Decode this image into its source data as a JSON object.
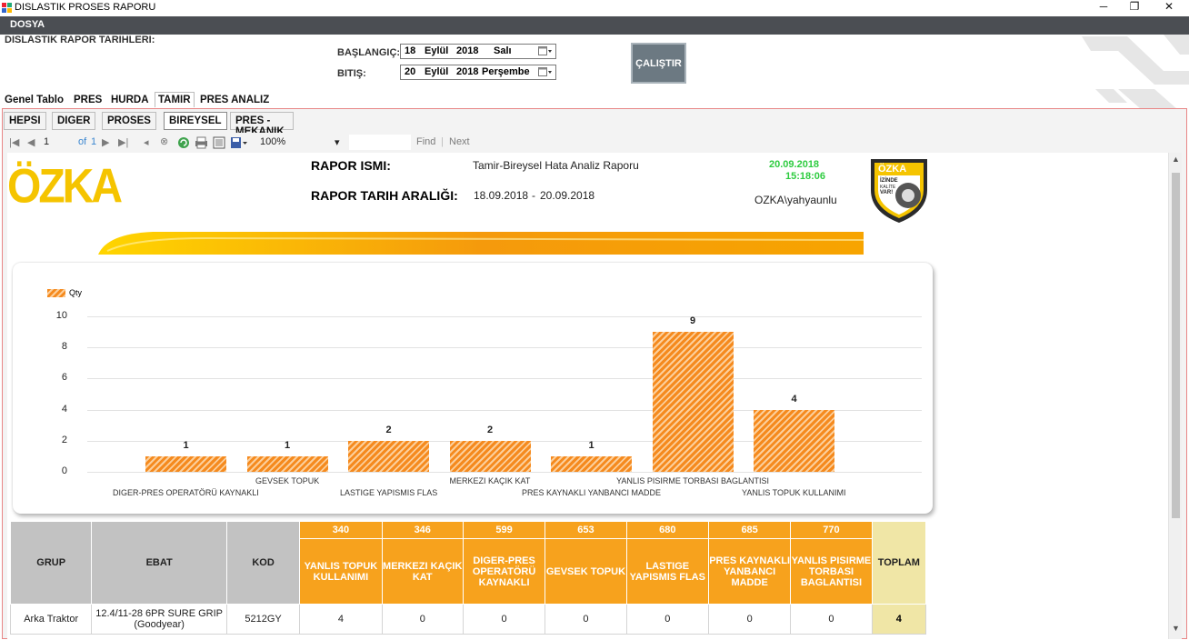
{
  "window": {
    "title": "DISLASTIK PROSES RAPORU",
    "minimize": "─",
    "restore": "❐",
    "close": "✕"
  },
  "menu": {
    "file": "DOSYA"
  },
  "header": {
    "dates_label": "DISLASTIK RAPOR TARIHLERI:",
    "start_label": "BAŞLANGIÇ:",
    "end_label": "BITIŞ:",
    "start": {
      "day": "18",
      "month": "Eylül",
      "year": "2018",
      "weekday": "Salı"
    },
    "end": {
      "day": "20",
      "month": "Eylül",
      "year": "2018",
      "weekday": "Perşembe"
    },
    "run_button": "ÇALIŞTIR"
  },
  "tabs_outer": [
    "Genel Tablo",
    "PRES",
    "HURDA",
    "TAMIR",
    "PRES ANALIZ"
  ],
  "tabs_inner": [
    "HEPSI",
    "DIGER",
    "PROSES",
    "BIREYSEL",
    "PRES - MEKANIK ELEKTRIK"
  ],
  "toolbar": {
    "page": "1",
    "of": "of",
    "total": "1",
    "zoom": "100%",
    "find": "Find",
    "next": "Next"
  },
  "report": {
    "logo": "ÖZKA",
    "name_label": "RAPOR ISMI:",
    "name_value": "Tamir-Bireysel Hata Analiz Raporu",
    "range_label": "RAPOR TARIH ARALIĞI:",
    "range_start": "18.09.2018",
    "range_sep": "-",
    "range_end": "20.09.2018",
    "date": "20.09.2018",
    "time": "15:18:06",
    "user": "OZKA\\yahyaunlu",
    "badge_lines": [
      "ÖZKA",
      "İZİNDE",
      "KALİTE",
      "VAR!"
    ]
  },
  "chart_data": {
    "type": "bar",
    "legend": "Qty",
    "categories": [
      "DIGER-PRES OPERATÖRÜ KAYNAKLI",
      "GEVSEK TOPUK",
      "LASTIGE YAPISMIS FLAS",
      "MERKEZI KAÇIK KAT",
      "PRES KAYNAKLI YANBANCI MADDE",
      "YANLIS PISIRME TORBASI BAGLANTISI",
      "YANLIS TOPUK KULLANIMI"
    ],
    "values": [
      1,
      1,
      2,
      2,
      1,
      9,
      4
    ],
    "ylim": [
      0,
      10
    ],
    "yticks": [
      0,
      2,
      4,
      6,
      8,
      10
    ],
    "grid": true,
    "color": "#f58a1e"
  },
  "table": {
    "headers": [
      "GRUP",
      "EBAT",
      "KOD"
    ],
    "columns": [
      {
        "code": "340",
        "name": "YANLIS TOPUK KULLANIMI"
      },
      {
        "code": "346",
        "name": "MERKEZI KAÇIK KAT"
      },
      {
        "code": "599",
        "name": "DIGER-PRES OPERATÖRÜ KAYNAKLI"
      },
      {
        "code": "653",
        "name": "GEVSEK TOPUK"
      },
      {
        "code": "680",
        "name": "LASTIGE YAPISMIS FLAS"
      },
      {
        "code": "685",
        "name": "PRES KAYNAKLI YANBANCI MADDE"
      },
      {
        "code": "770",
        "name": "YANLIS PISIRME TORBASI BAGLANTISI"
      }
    ],
    "total_label": "TOPLAM",
    "rows": [
      {
        "grup": "Arka Traktor",
        "ebat": "12.4/11-28 6PR SURE GRIP (Goodyear)",
        "kod": "5212GY",
        "values": [
          "4",
          "0",
          "0",
          "0",
          "0",
          "0",
          "0"
        ],
        "total": "4"
      }
    ]
  },
  "colors": {
    "menubar": "#4b4e53",
    "orange": "#f7a21d",
    "logo": "#f5c400",
    "total": "#f0e6a6",
    "green_datetime": "#2ecc40"
  }
}
